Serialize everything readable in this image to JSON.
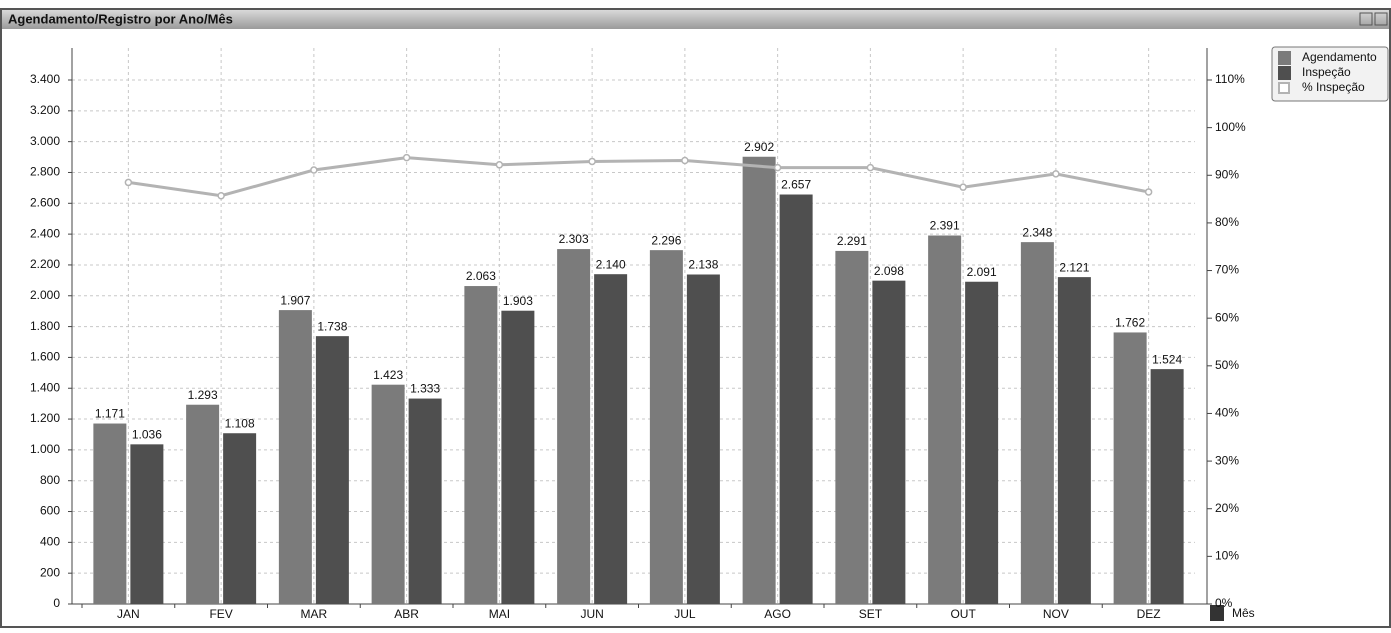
{
  "chart_data": {
    "type": "bar",
    "title": "Agendamento/Registro por Ano/Mês",
    "x_label": "Mês",
    "categories": [
      "JAN",
      "FEV",
      "MAR",
      "ABR",
      "MAI",
      "JUN",
      "JUL",
      "AGO",
      "SET",
      "OUT",
      "NOV",
      "DEZ"
    ],
    "series": [
      {
        "name": "Agendamento",
        "color": "#7b7b7b",
        "values": [
          1171,
          1293,
          1907,
          1423,
          2063,
          2303,
          2296,
          2902,
          2291,
          2391,
          2348,
          1762
        ],
        "value_labels": [
          "1.171",
          "1.293",
          "1.907",
          "1.423",
          "2.063",
          "2.303",
          "2.296",
          "2.902",
          "2.291",
          "2.391",
          "2.348",
          "1.762"
        ]
      },
      {
        "name": "Inspeção",
        "color": "#4f4f4f",
        "values": [
          1036,
          1108,
          1738,
          1333,
          1903,
          2140,
          2138,
          2657,
          2098,
          2091,
          2121,
          1524
        ],
        "value_labels": [
          "1.036",
          "1.108",
          "1.738",
          "1.333",
          "1.903",
          "2.140",
          "2.138",
          "2.657",
          "2.098",
          "2.091",
          "2.121",
          "1.524"
        ]
      },
      {
        "name": "% Inspeção",
        "color": "#b3b3b3",
        "axis": "y2",
        "type": "line",
        "values": [
          88.5,
          85.7,
          91.1,
          93.7,
          92.2,
          92.9,
          93.1,
          91.6,
          91.6,
          87.5,
          90.3,
          86.5
        ]
      }
    ],
    "ylim": [
      0,
      3400
    ],
    "yticks": [
      0,
      {
        "value": 200,
        "label": "200"
      },
      400,
      600,
      800,
      {
        "value": 1000,
        "label": "1.000"
      },
      {
        "value": 1200,
        "label": "1.200"
      },
      {
        "value": 1400,
        "label": "1.400"
      },
      {
        "value": 1600,
        "label": "1.600"
      },
      {
        "value": 1800,
        "label": "1.800"
      },
      {
        "value": 2000,
        "label": "2.000"
      },
      {
        "value": 2200,
        "label": "2.200"
      },
      {
        "value": 2400,
        "label": "2.400"
      },
      {
        "value": 2600,
        "label": "2.600"
      },
      {
        "value": 2800,
        "label": "2.800"
      },
      {
        "value": 3000,
        "label": "3.000"
      },
      {
        "value": 3200,
        "label": "3.200"
      },
      {
        "value": 3400,
        "label": "3.400"
      }
    ],
    "y2lim": [
      0,
      110
    ],
    "y2ticks": [
      {
        "value": 0,
        "label": "0%"
      },
      {
        "value": 10,
        "label": "10%"
      },
      {
        "value": 20,
        "label": "20%"
      },
      {
        "value": 30,
        "label": "30%"
      },
      {
        "value": 40,
        "label": "40%"
      },
      {
        "value": 50,
        "label": "50%"
      },
      {
        "value": 60,
        "label": "60%"
      },
      {
        "value": 70,
        "label": "70%"
      },
      {
        "value": 80,
        "label": "80%"
      },
      {
        "value": 90,
        "label": "90%"
      },
      {
        "value": 100,
        "label": "100%"
      },
      {
        "value": 110,
        "label": "110%"
      }
    ],
    "grid": true,
    "legend": "top-right"
  }
}
